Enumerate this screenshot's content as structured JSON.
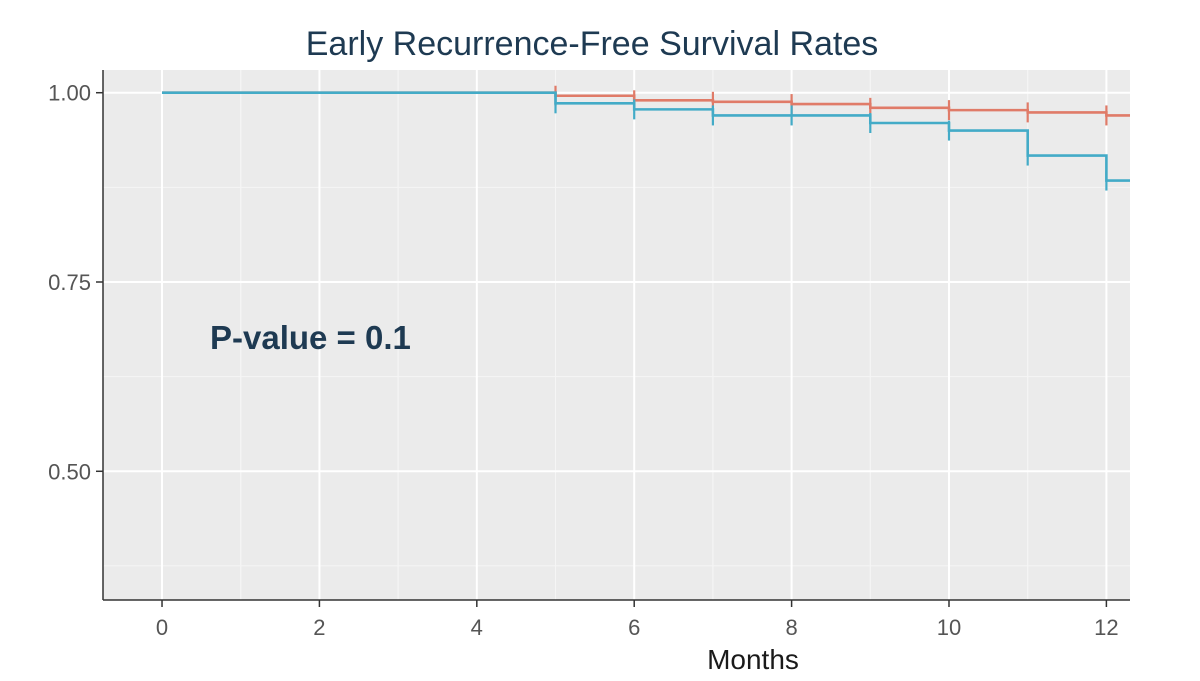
{
  "chart_data": {
    "type": "line",
    "title": "Early Recurrence-Free Survival Rates",
    "xlabel": "Months",
    "ylabel": "",
    "xlim": [
      -0.75,
      12.3
    ],
    "ylim": [
      0.33,
      1.03
    ],
    "x_ticks": [
      0,
      2,
      4,
      6,
      8,
      10,
      12
    ],
    "x_tick_labels": [
      "0",
      "2",
      "4",
      "6",
      "8",
      "10",
      "12"
    ],
    "y_ticks": [
      0.5,
      0.75,
      1.0
    ],
    "y_tick_labels": [
      "0.50",
      "0.75",
      "1.00"
    ],
    "grid": true,
    "step": true,
    "annotation": "P-value = 0.1",
    "colors": {
      "background": "#ebebeb",
      "grid_major": "#ffffff",
      "grid_minor": "#f5f5f5"
    },
    "series": [
      {
        "color": "#e07b68",
        "x": [
          0,
          5,
          6,
          7,
          8,
          9,
          10,
          11,
          12,
          12.3
        ],
        "y": [
          1.0,
          0.996,
          0.99,
          0.988,
          0.985,
          0.98,
          0.977,
          0.974,
          0.97,
          0.97
        ],
        "censor_x": [
          5,
          6,
          7,
          8,
          9,
          10,
          11,
          12
        ],
        "censor_y": [
          0.996,
          0.99,
          0.988,
          0.985,
          0.98,
          0.977,
          0.974,
          0.97
        ]
      },
      {
        "color": "#43abc7",
        "x": [
          0,
          5,
          6,
          7,
          9,
          10,
          11,
          12,
          12.3
        ],
        "y": [
          1.0,
          0.986,
          0.978,
          0.97,
          0.96,
          0.95,
          0.917,
          0.884,
          0.884
        ],
        "censor_x": [
          5,
          6,
          7,
          8,
          9,
          10,
          11,
          12
        ],
        "censor_y": [
          0.986,
          0.978,
          0.97,
          0.97,
          0.96,
          0.95,
          0.917,
          0.884
        ]
      }
    ]
  }
}
